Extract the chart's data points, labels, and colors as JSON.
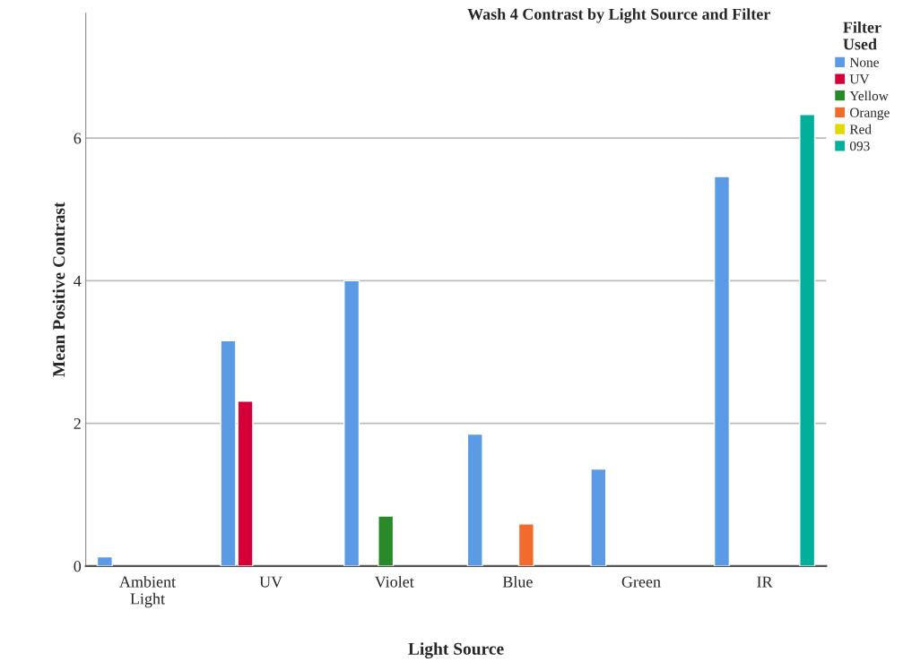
{
  "chart_data": {
    "type": "bar",
    "title": "Wash 4 Contrast by Light Source and Filter",
    "xlabel": "Light Source",
    "ylabel": "Mean Positive Contrast",
    "legend_title": "Filter\nUsed",
    "categories": [
      "Ambient\nLight",
      "UV",
      "Violet",
      "Blue",
      "Green",
      "IR"
    ],
    "series": [
      {
        "name": "None",
        "color": "#5b9be6",
        "values": [
          0.13,
          3.16,
          4.0,
          1.85,
          1.36,
          5.46
        ]
      },
      {
        "name": "UV",
        "color": "#d4003a",
        "values": [
          null,
          2.31,
          null,
          null,
          null,
          null
        ]
      },
      {
        "name": "Yellow",
        "color": "#2a8a2a",
        "values": [
          null,
          null,
          0.7,
          null,
          null,
          null
        ]
      },
      {
        "name": "Orange",
        "color": "#f26b2d",
        "values": [
          null,
          null,
          null,
          0.59,
          null,
          null
        ]
      },
      {
        "name": "Red",
        "color": "#e2d900",
        "values": [
          null,
          null,
          null,
          null,
          null,
          null
        ]
      },
      {
        "name": "093",
        "color": "#00b09a",
        "values": [
          null,
          null,
          null,
          null,
          null,
          6.33
        ]
      }
    ],
    "ylim": [
      0,
      7.75
    ],
    "yticks": [
      0,
      2,
      4,
      6
    ],
    "grid": "y",
    "legend": "top right"
  }
}
